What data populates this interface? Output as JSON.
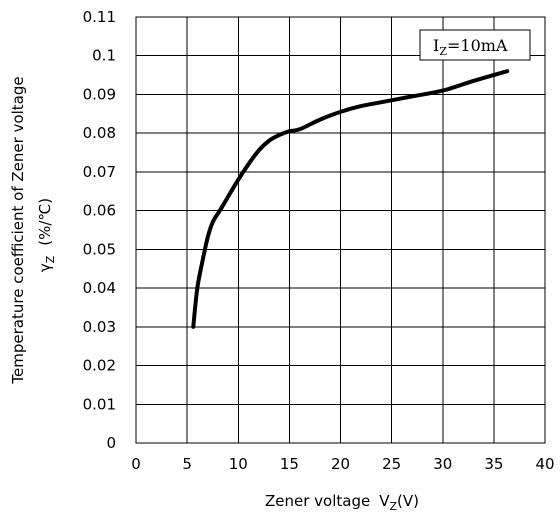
{
  "chart_data": {
    "type": "line",
    "xlabel": "Zener voltage",
    "xlabel_symbol": "V",
    "xlabel_sub": "Z",
    "xlabel_unit": "(V)",
    "ylabel_line1": "Temperature coefficient of Zener voltage",
    "ylabel_symbol": "γ",
    "ylabel_sub": "Z",
    "ylabel_unit": "(%/℃)",
    "xlim": [
      0,
      40
    ],
    "ylim": [
      0,
      0.11
    ],
    "x_ticks": [
      "0",
      "5",
      "10",
      "15",
      "20",
      "25",
      "30",
      "35",
      "40"
    ],
    "y_ticks": [
      "0",
      "0.01",
      "0.02",
      "0.03",
      "0.04",
      "0.05",
      "0.06",
      "0.07",
      "0.08",
      "0.09",
      "0.1",
      "0.11"
    ],
    "grid": true,
    "legend_position": "top-right",
    "legend_symbol": "I",
    "legend_sub": "Z",
    "legend_rest": "=10mA",
    "series": [
      {
        "x": [
          5.6,
          6.0,
          6.5,
          7.0,
          7.5,
          8.2,
          9.1,
          10.0,
          11.0,
          12.0,
          13.0,
          14.0,
          15.0,
          16.0,
          18.0,
          20.0,
          22.0,
          24.0,
          27.0,
          30.0,
          33.0,
          36.3
        ],
        "y": [
          0.03,
          0.04,
          0.047,
          0.053,
          0.057,
          0.06,
          0.064,
          0.068,
          0.072,
          0.0755,
          0.078,
          0.0795,
          0.0805,
          0.081,
          0.0835,
          0.0855,
          0.087,
          0.088,
          0.0895,
          0.091,
          0.0935,
          0.096
        ]
      }
    ]
  }
}
